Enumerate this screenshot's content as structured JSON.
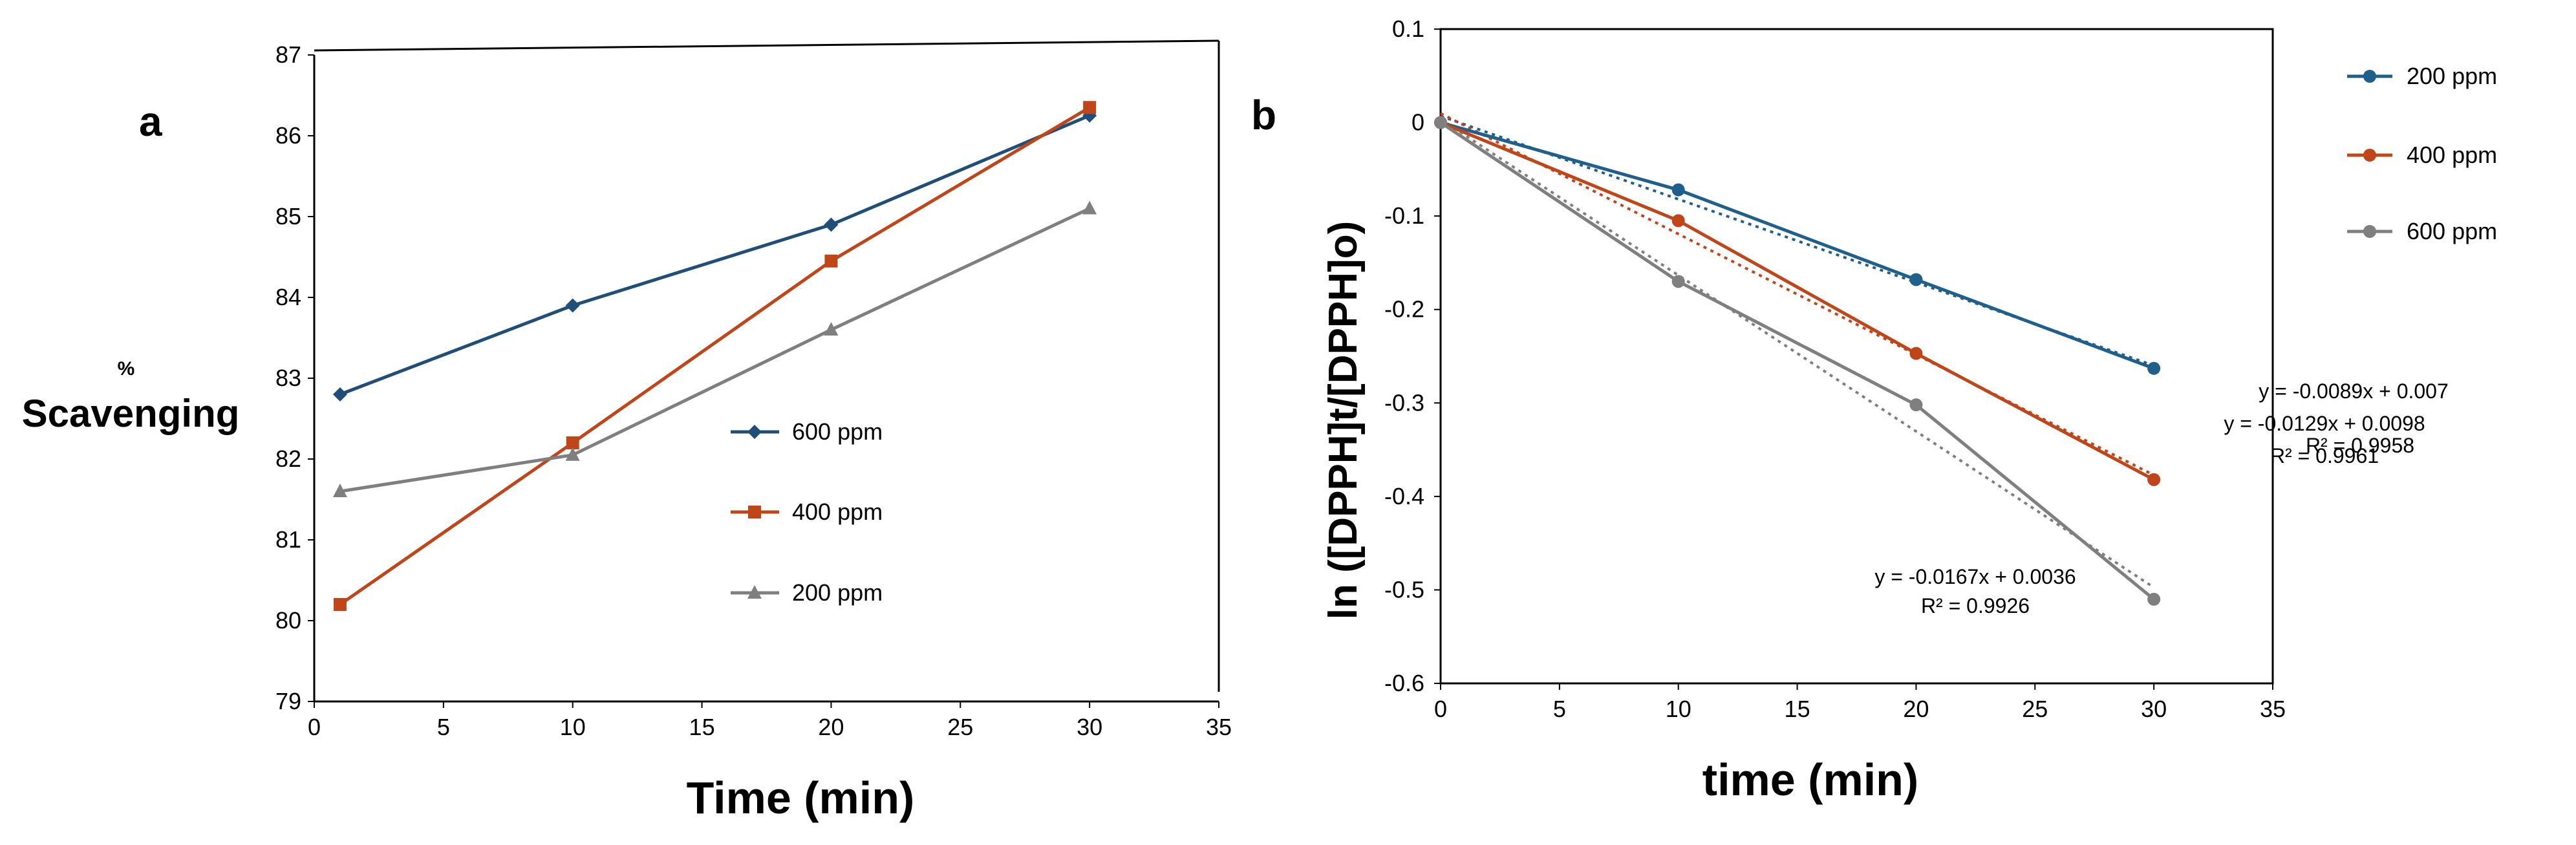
{
  "chart_data": [
    {
      "panel": "a",
      "type": "line",
      "title": "",
      "xlabel": "Time (min)",
      "ylabel_top": "%",
      "ylabel": "Scavenging",
      "xlim": [
        0,
        35
      ],
      "ylim": [
        79,
        87
      ],
      "xticks": [
        0,
        5,
        10,
        15,
        20,
        25,
        30,
        35
      ],
      "yticks": [
        79,
        80,
        81,
        82,
        83,
        84,
        85,
        86,
        87
      ],
      "grid": false,
      "legend_position": "center-right",
      "series": [
        {
          "name": "600 ppm",
          "color": "#1F4E79",
          "marker": "diamond",
          "x": [
            1,
            10,
            20,
            30
          ],
          "y": [
            82.8,
            83.9,
            84.9,
            86.25
          ]
        },
        {
          "name": "400 ppm",
          "color": "#C0461A",
          "marker": "square",
          "x": [
            1,
            10,
            20,
            30
          ],
          "y": [
            80.2,
            82.2,
            84.45,
            86.35
          ]
        },
        {
          "name": "200 ppm",
          "color": "#7F7F7F",
          "marker": "triangle",
          "x": [
            1,
            10,
            20,
            30
          ],
          "y": [
            81.6,
            82.05,
            83.6,
            85.1
          ]
        }
      ]
    },
    {
      "panel": "b",
      "type": "line",
      "title": "",
      "xlabel": "time (min)",
      "ylabel": "ln ([DPPH]t/[DPPH]o)",
      "xlim": [
        0,
        35
      ],
      "ylim": [
        -0.6,
        0.1
      ],
      "xticks": [
        0,
        5,
        10,
        15,
        20,
        25,
        30,
        35
      ],
      "yticks": [
        -0.6,
        -0.5,
        -0.4,
        -0.3,
        -0.2,
        -0.1,
        0,
        0.1
      ],
      "ytick_labels": [
        "-0.6",
        "-0.5",
        "-0.4",
        "-0.3",
        "-0.2",
        "-0.1",
        "0",
        "0.1"
      ],
      "grid": false,
      "legend_position": "top-right",
      "series": [
        {
          "name": "200 ppm",
          "color": "#1F5F8B",
          "marker": "circle",
          "x": [
            0,
            10,
            20,
            30
          ],
          "y": [
            0,
            -0.072,
            -0.168,
            -0.263
          ]
        },
        {
          "name": "400 ppm",
          "color": "#C0461A",
          "marker": "circle",
          "x": [
            0,
            10,
            20,
            30
          ],
          "y": [
            0,
            -0.105,
            -0.247,
            -0.382
          ]
        },
        {
          "name": "600 ppm",
          "color": "#7F7F7F",
          "marker": "circle",
          "x": [
            0,
            10,
            20,
            30
          ],
          "y": [
            0,
            -0.17,
            -0.302,
            -0.51
          ]
        }
      ],
      "trendlines": [
        {
          "series": "200 ppm",
          "color": "#1F5F8B",
          "slope": -0.0089,
          "intercept": 0.007,
          "equation": "y = -0.0089x + 0.007",
          "r2": "R² = 0.9958"
        },
        {
          "series": "400 ppm",
          "color": "#C0461A",
          "slope": -0.0129,
          "intercept": 0.0098,
          "equation": "y = -0.0129x + 0.0098",
          "r2": "R² = 0.9961"
        },
        {
          "series": "600 ppm",
          "color": "#7F7F7F",
          "slope": -0.0167,
          "intercept": 0.0036,
          "equation": "y = -0.0167x + 0.0036",
          "r2": "R² = 0.9926"
        }
      ]
    }
  ]
}
